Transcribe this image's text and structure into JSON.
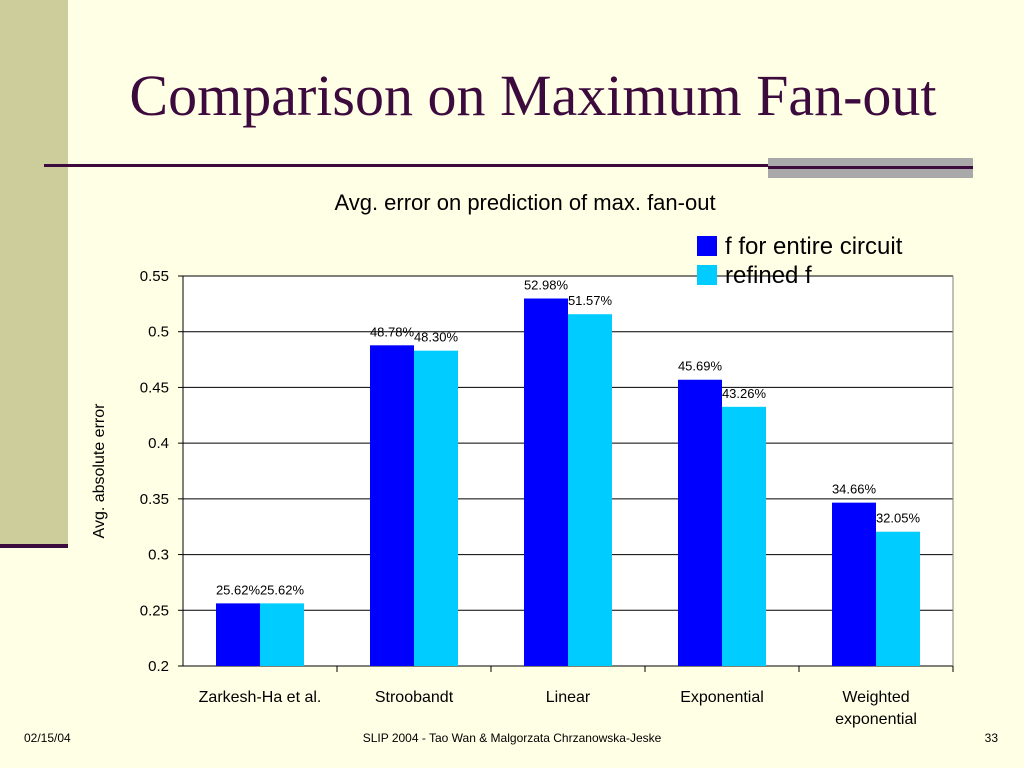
{
  "slide": {
    "title": "Comparison on Maximum Fan-out",
    "footer_date": "02/15/04",
    "footer_center": "SLIP 2004  - Tao Wan & Malgorzata Chrzanowska-Jeske",
    "footer_page": "33"
  },
  "colors": {
    "background": "#FFFFE6",
    "side_bar": "#CDCD9B",
    "accent_dark": "#3D0A3D",
    "series_1": "#0000FF",
    "series_2": "#00CCFF"
  },
  "chart_data": {
    "type": "bar",
    "title": "Avg. error on prediction of max. fan-out",
    "xlabel": "",
    "ylabel": "Avg. absolute error",
    "ylim": [
      0.2,
      0.55
    ],
    "yticks": [
      "0.2",
      "0.25",
      "0.3",
      "0.35",
      "0.4",
      "0.45",
      "0.5",
      "0.55"
    ],
    "grid": true,
    "legend_position": "top-right",
    "categories": [
      [
        "Zarkesh-Ha et al."
      ],
      [
        "Stroobandt"
      ],
      [
        "Linear"
      ],
      [
        "Exponential"
      ],
      [
        "Weighted",
        "exponential"
      ]
    ],
    "series": [
      {
        "name": "f for entire circuit",
        "values": [
          0.2562,
          0.4878,
          0.5298,
          0.4569,
          0.3466
        ],
        "labels": [
          "25.62%",
          "48.78%",
          "52.98%",
          "45.69%",
          "34.66%"
        ]
      },
      {
        "name": "refined f",
        "values": [
          0.2562,
          0.483,
          0.5157,
          0.4326,
          0.3205
        ],
        "labels": [
          "25.62%",
          "48.30%",
          "51.57%",
          "43.26%",
          "32.05%"
        ]
      }
    ]
  }
}
